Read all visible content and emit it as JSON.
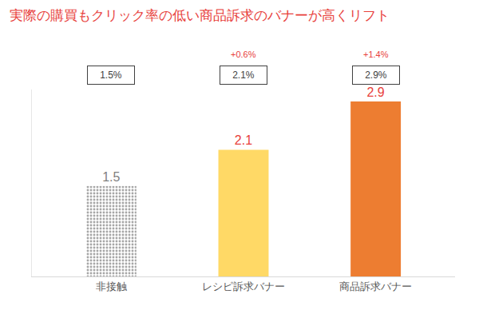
{
  "chart_data": {
    "type": "bar",
    "title": "実際の購買もクリック率の低い商品訴求のバナーが高くリフト",
    "categories": [
      "非接触",
      "レシピ訴求バナー",
      "商品訴求バナー"
    ],
    "values": [
      1.5,
      2.1,
      2.9
    ],
    "colors": [
      "#a6a6a6",
      "#ffd966",
      "#ed7d31"
    ],
    "data_labels": true,
    "box_labels": [
      "1.5%",
      "2.1%",
      "2.9%"
    ],
    "annotations": [
      {
        "category": "レシピ訴求バナー",
        "text": "+0.6%"
      },
      {
        "category": "商品訴求バナー",
        "text": "+1.4%"
      }
    ],
    "ylim": [
      0,
      3.1
    ],
    "tick_labels": "x",
    "grid": false
  }
}
